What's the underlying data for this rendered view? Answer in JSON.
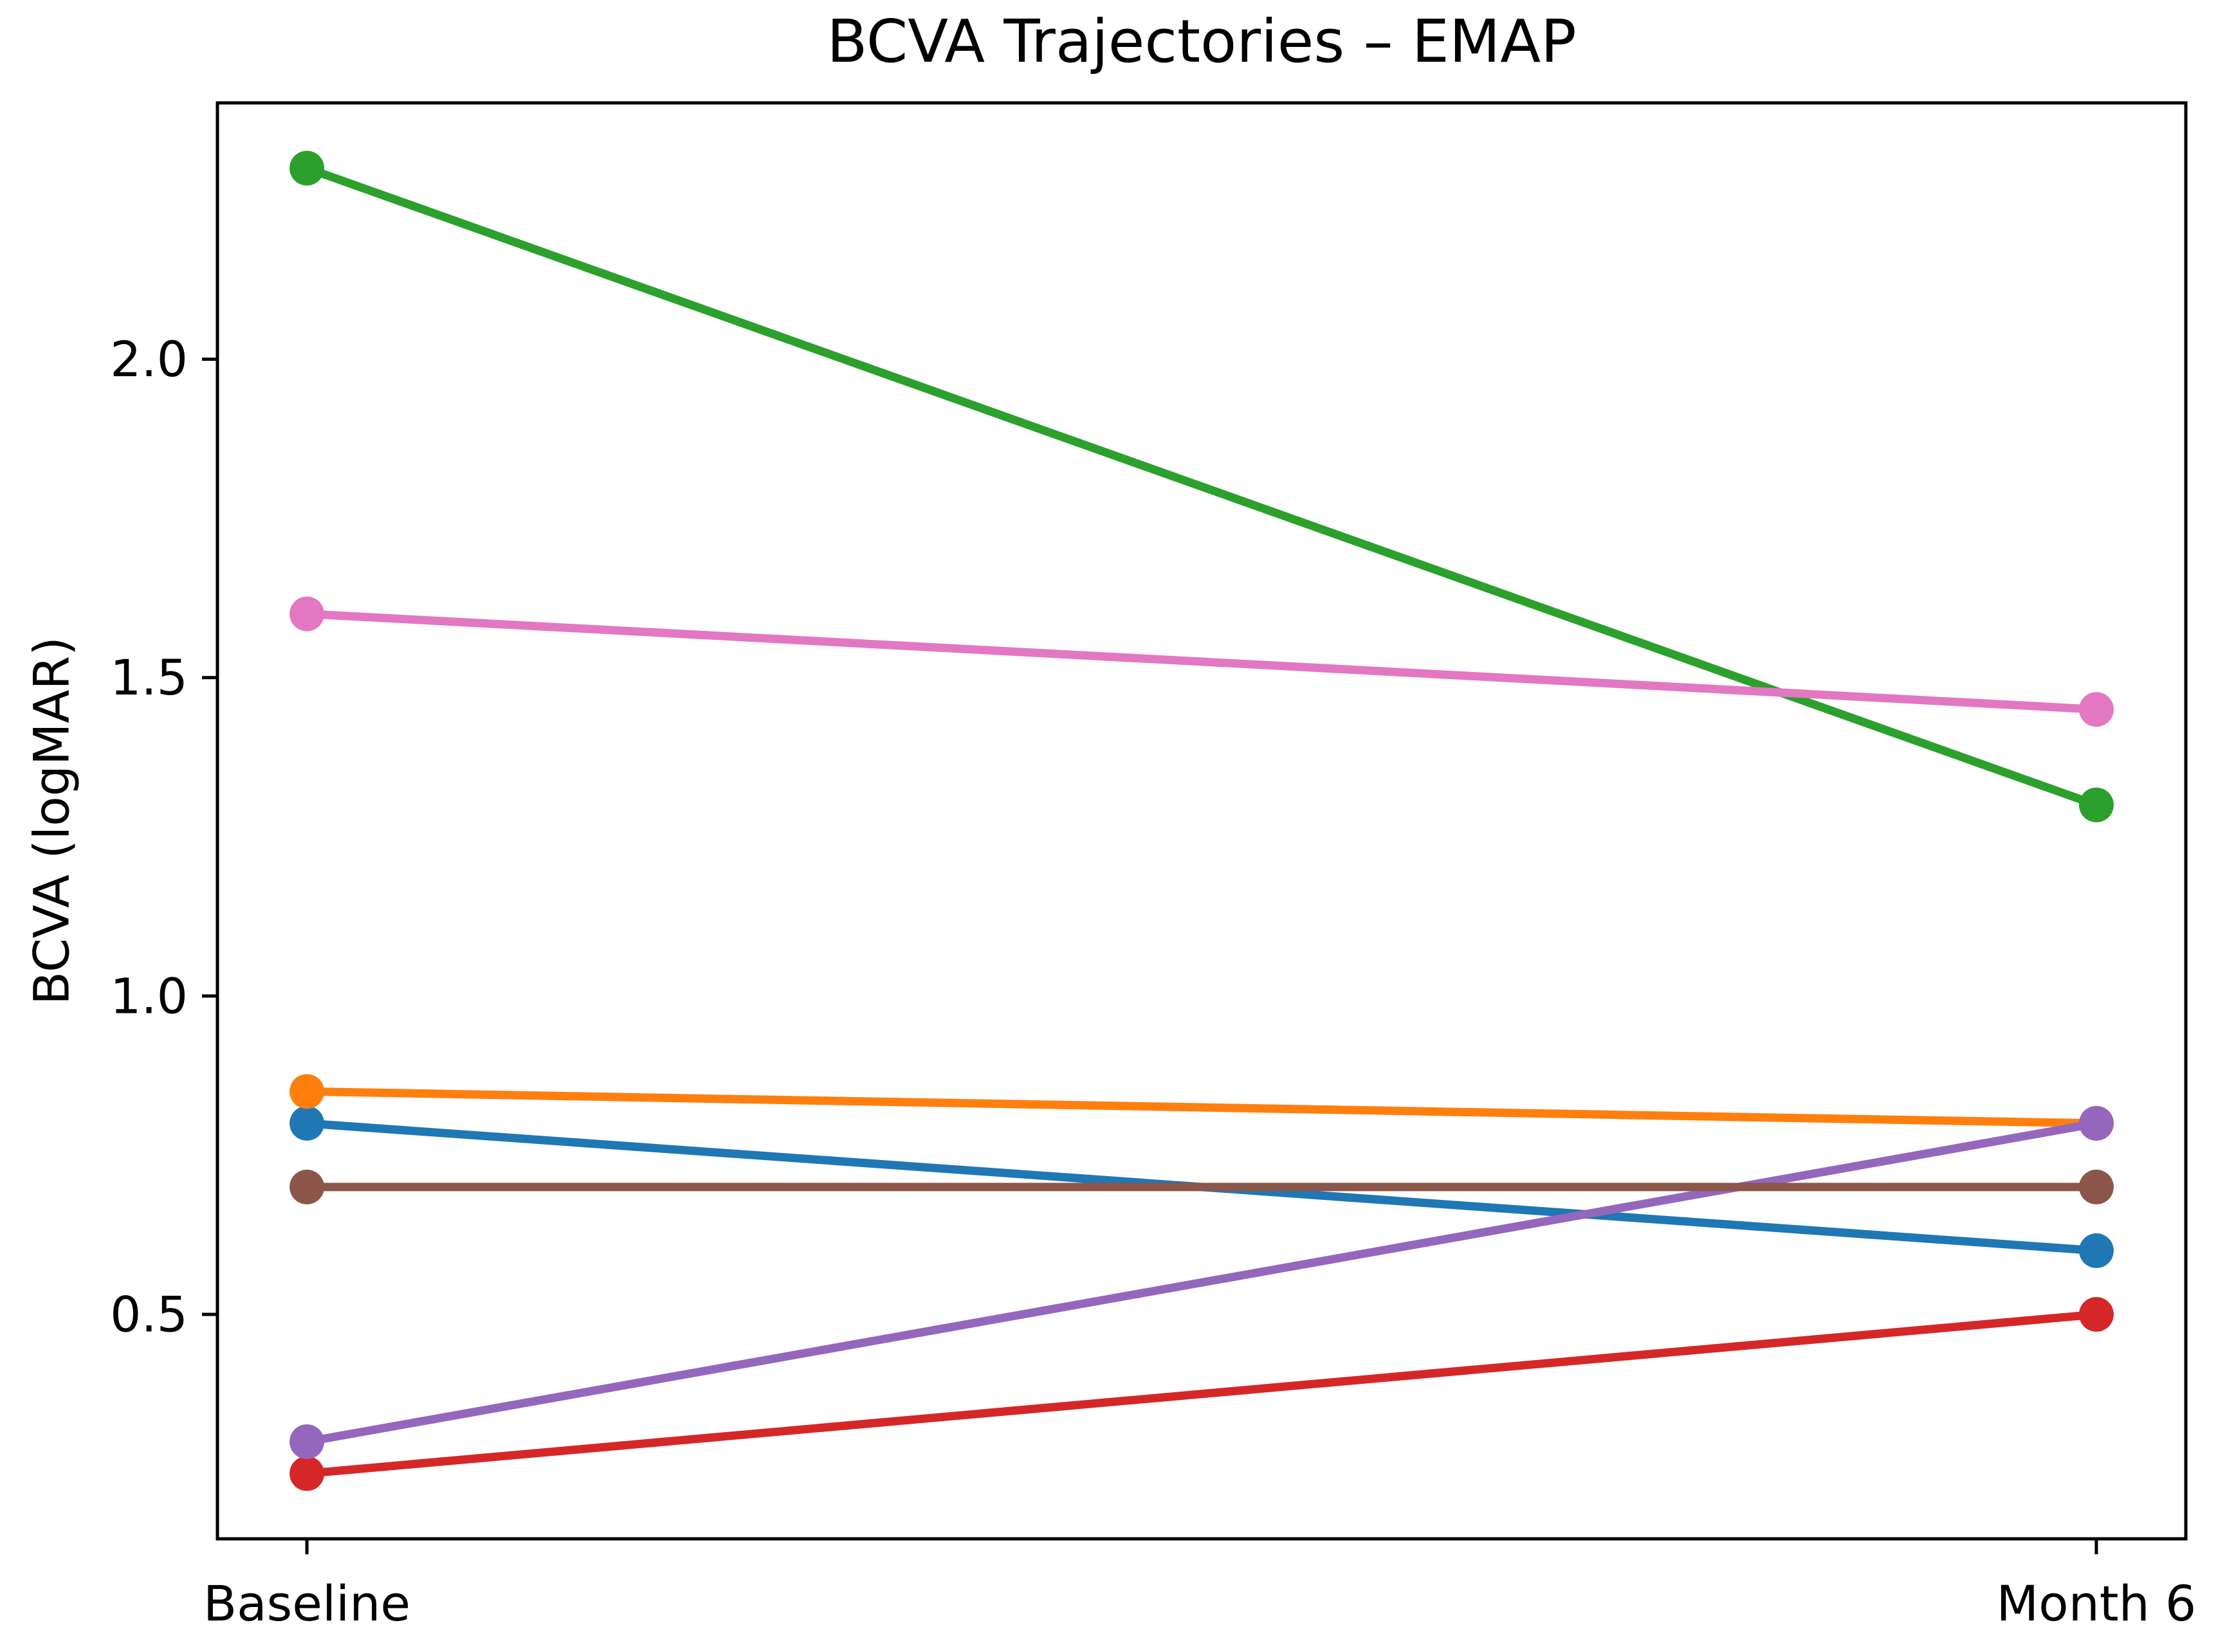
{
  "figure": {
    "background": "#ffffff"
  },
  "chart_data": {
    "type": "line",
    "subtype": "slope-chart",
    "title": "BCVA Trajectories – EMAP",
    "xlabel": "",
    "ylabel": "BCVA (logMAR)",
    "categories": [
      "Baseline",
      "Month 6"
    ],
    "x_tick_labels": [
      "Baseline",
      "Month 6"
    ],
    "y_ticks": [
      0.5,
      1.0,
      1.5,
      2.0
    ],
    "y_tick_labels": [
      "0.5",
      "1.0",
      "1.5",
      "2.0"
    ],
    "xlim": [
      -0.05,
      1.05
    ],
    "ylim": [
      0.1475,
      2.4025
    ],
    "grid": false,
    "legend_position": "none",
    "marker": "circle",
    "series": [
      {
        "name": "blue-trajectory",
        "color": "#1f77b4",
        "values": [
          0.8,
          0.6
        ]
      },
      {
        "name": "orange-trajectory",
        "color": "#ff7f0e",
        "values": [
          0.85,
          0.8
        ]
      },
      {
        "name": "green-trajectory",
        "color": "#2ca02c",
        "values": [
          2.3,
          1.3
        ]
      },
      {
        "name": "red-trajectory",
        "color": "#d62728",
        "values": [
          0.25,
          0.5
        ]
      },
      {
        "name": "purple-trajectory",
        "color": "#9467bd",
        "values": [
          0.3,
          0.8
        ]
      },
      {
        "name": "brown-trajectory",
        "color": "#8c564b",
        "values": [
          0.7,
          0.7
        ]
      },
      {
        "name": "pink-trajectory",
        "color": "#e377c2",
        "values": [
          1.6,
          1.45
        ]
      }
    ],
    "axis_color": "#000000",
    "text_color": "#000000"
  }
}
